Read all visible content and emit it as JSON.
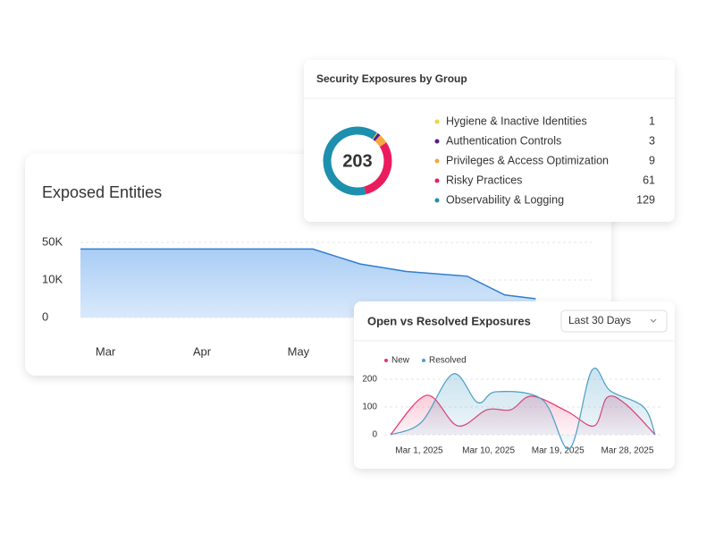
{
  "chart_data": [
    {
      "type": "area",
      "title": "Exposed Entities",
      "color": "#2f7fd1",
      "x": [
        -0.26,
        2.15,
        2.64,
        3.12,
        3.75,
        4.14,
        4.46
      ],
      "values": [
        43000,
        43000,
        27000,
        19000,
        14000,
        6000,
        5000
      ],
      "xlim": [
        -0.26,
        5.04
      ],
      "xticks": [
        {
          "value": 0,
          "label": "Mar"
        },
        {
          "value": 1,
          "label": "Apr"
        },
        {
          "value": 2,
          "label": "May"
        }
      ],
      "ylim": [
        0,
        50000
      ],
      "yticks": [
        0,
        {
          "value": 10000,
          "label": "10K"
        },
        {
          "value": 50000,
          "label": "50K"
        }
      ],
      "yscale": "tick-spaced",
      "grid": true
    },
    {
      "type": "donut",
      "title": "Security Exposures by Group",
      "total": 203,
      "labels": [
        "Hygiene & Inactive Identities",
        "Authentication Controls",
        "Privileges & Access Optimization",
        "Risky Practices",
        "Observability & Logging"
      ],
      "values": [
        1,
        3,
        9,
        61,
        129
      ],
      "colors": [
        "#f2d43c",
        "#5a1a8a",
        "#f6a93f",
        "#ea1c5d",
        "#1e8fad"
      ]
    },
    {
      "type": "line",
      "title": "Open vs Resolved Exposures",
      "dropdown": "Last 30 Days",
      "x": [
        -3.7,
        1.0,
        5.0,
        8.8,
        11.9,
        14.6,
        19.2,
        22.7,
        24.4,
        26.8,
        30.6
      ],
      "x2": [
        -3.7,
        0.3,
        4.4,
        7.6,
        10.0,
        16.0,
        19.5,
        22.4,
        24.8,
        29.1,
        30.6
      ],
      "series": [
        {
          "name": "New",
          "color": "#e8336b",
          "values": [
            0,
            142,
            32,
            90,
            90,
            139,
            84,
            32,
            135,
            110,
            0
          ]
        },
        {
          "name": "Resolved",
          "color": "#4a9ec4",
          "values": [
            0,
            45,
            219,
            116,
            155,
            126,
            -50,
            232,
            158,
            100,
            0
          ]
        }
      ],
      "xlim": [
        -3.7,
        30.6
      ],
      "xticks": [
        {
          "value": 0,
          "label": "Mar 1, 2025"
        },
        {
          "value": 9,
          "label": "Mar 10, 2025"
        },
        {
          "value": 18,
          "label": "Mar 19, 2025"
        },
        {
          "value": 27,
          "label": "Mar 28, 2025"
        }
      ],
      "ylim": [
        0,
        245
      ],
      "yticks": [
        0,
        100,
        200
      ],
      "grid": true
    }
  ]
}
